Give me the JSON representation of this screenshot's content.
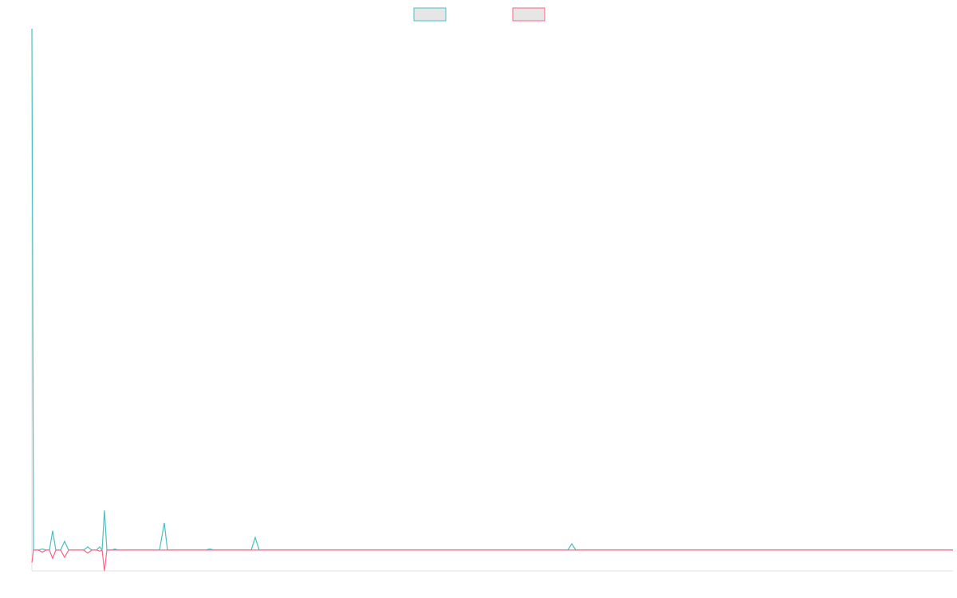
{
  "chart_data": {
    "type": "line",
    "x": [
      0,
      2,
      8,
      13,
      18,
      22,
      26,
      30,
      36,
      41,
      46,
      65,
      70,
      75,
      81,
      85,
      88,
      91,
      94,
      100,
      104,
      108,
      160,
      166,
      170,
      218,
      223,
      228,
      275,
      280,
      285,
      672,
      677,
      682,
      1155
    ],
    "series": [
      {
        "color": "#4bc0c0",
        "values": [
          25,
          0,
          0,
          0.05,
          0,
          0,
          0.92,
          0,
          0,
          0.42,
          0,
          0,
          0.15,
          0,
          0,
          0.15,
          0,
          1.9,
          0,
          0,
          0.05,
          0,
          0,
          1.3,
          0,
          0,
          0.05,
          0,
          0,
          0.6,
          0,
          0,
          0.3,
          0,
          0
        ]
      },
      {
        "color": "#ff6384",
        "values": [
          -0.6,
          0,
          0,
          -0.1,
          0,
          0,
          -0.4,
          0,
          0,
          -0.35,
          0,
          0,
          -0.15,
          0,
          0,
          -0.05,
          0,
          -1,
          0,
          0,
          0,
          0,
          0,
          0,
          0,
          0,
          0,
          0,
          0,
          0,
          0,
          0,
          0,
          0,
          0
        ]
      }
    ],
    "xlim": [
      0,
      1155
    ],
    "ylim": [
      -1,
      25
    ],
    "grid": false,
    "legend": "top"
  }
}
